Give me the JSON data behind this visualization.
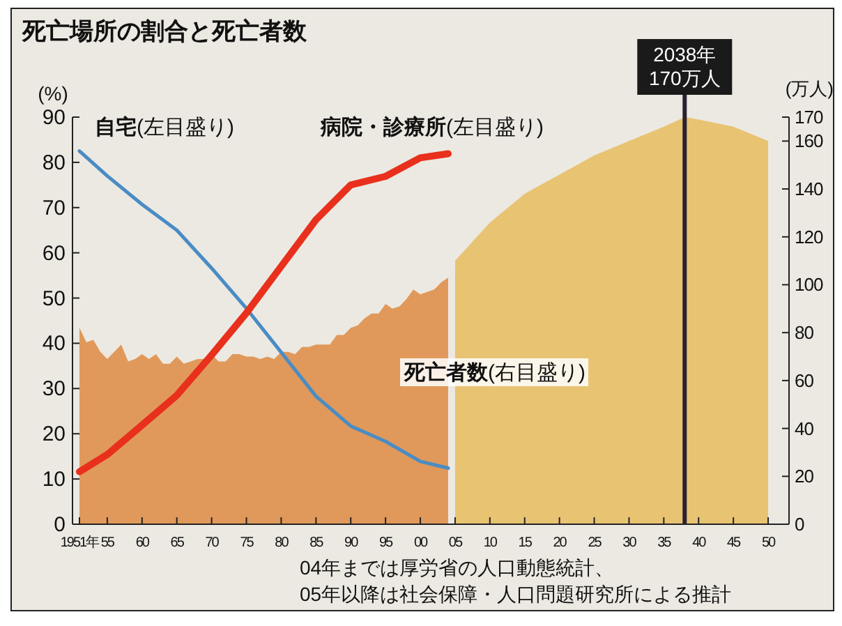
{
  "chart_data": {
    "type": "line",
    "title": "死亡場所の割合と死亡者数",
    "ylabel": "(%)",
    "y2label": "(万人)",
    "xlim": [
      1950,
      2053
    ],
    "xticks": [
      {
        "value": 1951,
        "label": "1951年"
      },
      {
        "value": 1955,
        "label": "55"
      },
      {
        "value": 1960,
        "label": "60"
      },
      {
        "value": 1965,
        "label": "65"
      },
      {
        "value": 1970,
        "label": "70"
      },
      {
        "value": 1975,
        "label": "75"
      },
      {
        "value": 1980,
        "label": "80"
      },
      {
        "value": 1985,
        "label": "85"
      },
      {
        "value": 1990,
        "label": "90"
      },
      {
        "value": 1995,
        "label": "95"
      },
      {
        "value": 2000,
        "label": "00"
      },
      {
        "value": 2005,
        "label": "05"
      },
      {
        "value": 2010,
        "label": "10"
      },
      {
        "value": 2015,
        "label": "15"
      },
      {
        "value": 2020,
        "label": "20"
      },
      {
        "value": 2025,
        "label": "25"
      },
      {
        "value": 2030,
        "label": "30"
      },
      {
        "value": 2035,
        "label": "35"
      },
      {
        "value": 2040,
        "label": "40"
      },
      {
        "value": 2045,
        "label": "45"
      },
      {
        "value": 2050,
        "label": "50"
      }
    ],
    "ylim": [
      0,
      90
    ],
    "yticks": [
      0,
      10,
      20,
      30,
      40,
      50,
      60,
      70,
      80,
      90
    ],
    "y2lim": [
      0,
      170
    ],
    "y2ticks": [
      0,
      20,
      40,
      60,
      80,
      100,
      120,
      140,
      160,
      170
    ],
    "series": [
      {
        "name": "死亡者数(右目盛り)",
        "type": "area",
        "axis": "y2",
        "color": "#e0995a",
        "x": [
          1951,
          1952,
          1953,
          1954,
          1955,
          1956,
          1957,
          1958,
          1959,
          1960,
          1961,
          1962,
          1963,
          1964,
          1965,
          1966,
          1967,
          1968,
          1969,
          1970,
          1971,
          1972,
          1973,
          1974,
          1975,
          1976,
          1977,
          1978,
          1979,
          1980,
          1981,
          1982,
          1983,
          1984,
          1985,
          1986,
          1987,
          1988,
          1989,
          1990,
          1991,
          1992,
          1993,
          1994,
          1995,
          1996,
          1997,
          1998,
          1999,
          2000,
          2001,
          2002,
          2003,
          2004
        ],
        "values": [
          82,
          76,
          77,
          72,
          69,
          72,
          75,
          68,
          69,
          71,
          69,
          71,
          67,
          67,
          70,
          67,
          68,
          69,
          69,
          71,
          68,
          68,
          71,
          71,
          70,
          70,
          69,
          70,
          69,
          72,
          72,
          71,
          74,
          74,
          75,
          75,
          75,
          79,
          79,
          82,
          83,
          86,
          88,
          88,
          92,
          90,
          91,
          94,
          98,
          96,
          97,
          98,
          101,
          103
        ]
      },
      {
        "type": "area",
        "axis": "y2",
        "color": "#e8c372",
        "x": [
          2005,
          2010,
          2015,
          2020,
          2025,
          2030,
          2035,
          2038,
          2040,
          2045,
          2050
        ],
        "values": [
          110,
          126,
          138,
          146,
          154,
          160,
          166,
          170,
          169,
          166,
          160
        ]
      },
      {
        "name": "自宅(左目盛り)",
        "color": "#4a8cc4",
        "x": [
          1951,
          1955,
          1960,
          1965,
          1970,
          1975,
          1980,
          1985,
          1990,
          1995,
          2000,
          2004
        ],
        "values": [
          82.5,
          77,
          70.7,
          65,
          56.6,
          47.7,
          38,
          28.3,
          21.7,
          18.3,
          13.9,
          12.4
        ]
      },
      {
        "name": "病院・診療所(左目盛り)",
        "color": "#e8301c",
        "x": [
          1951,
          1955,
          1960,
          1965,
          1970,
          1975,
          1980,
          1985,
          1990,
          1995,
          2000,
          2004
        ],
        "values": [
          11.6,
          15.4,
          21.9,
          28.5,
          37.4,
          46.7,
          57,
          67.3,
          75,
          76.9,
          81,
          81.9
        ]
      }
    ],
    "ref_lines": [
      {
        "axis": "x",
        "value": 2038,
        "label": "2038年\n170万人",
        "color": "#2a2230"
      }
    ],
    "annotations": [
      "04年までは厚労省の人口動態統計、\n05年以降は社会保障・人口問題研究所による推計"
    ],
    "legend": false,
    "grid": false
  }
}
